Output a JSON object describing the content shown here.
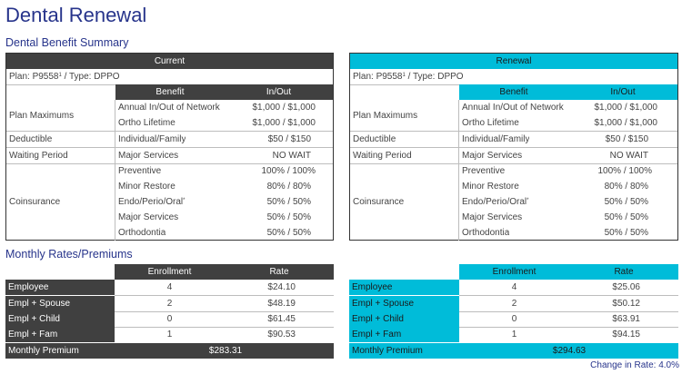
{
  "page": {
    "title": "Dental Renewal",
    "summary_heading": "Dental Benefit Summary",
    "rates_heading": "Monthly Rates/Premiums",
    "change_in_rate": "Change in Rate: 4.0%"
  },
  "colors": {
    "accent": "#00bcd9",
    "dark_header": "#404040",
    "title_blue": "#27348b"
  },
  "benefit_summary": {
    "current": {
      "header": "Current",
      "plan_prefix": "Plan: P9558",
      "plan_sup": "1",
      "plan_suffix": " / Type: DPPO",
      "col_benefit": "Benefit",
      "col_inout": "In/Out",
      "groups": {
        "plan_max": {
          "label": "Plan Maximums",
          "rows": [
            {
              "benefit": "Annual In/Out of Network",
              "value": "$1,000 / $1,000"
            },
            {
              "benefit": "Ortho Lifetime",
              "value": "$1,000 / $1,000"
            }
          ]
        },
        "deductible": {
          "label": "Deductible",
          "rows": [
            {
              "benefit": "Individual/Family",
              "value": "$50 / $150"
            }
          ]
        },
        "waiting": {
          "label": "Waiting Period",
          "rows": [
            {
              "benefit": "Major Services",
              "value": "NO WAIT"
            }
          ]
        },
        "coins": {
          "label": "Coinsurance",
          "rows": [
            {
              "benefit": "Preventive",
              "value": "100% / 100%"
            },
            {
              "benefit": "Minor Restore",
              "value": "80% / 80%"
            },
            {
              "benefit": "Endo/Perio/Oral",
              "value": "50% / 50%"
            },
            {
              "benefit": "Major Services",
              "value": "50% / 50%"
            },
            {
              "benefit": "Orthodontia",
              "value": "50% / 50%"
            }
          ]
        }
      }
    },
    "renewal": {
      "header": "Renewal",
      "plan_prefix": "Plan: P9558",
      "plan_sup": "1",
      "plan_suffix": " / Type: DPPO",
      "col_benefit": "Benefit",
      "col_inout": "In/Out",
      "groups": {
        "plan_max": {
          "label": "Plan Maximums",
          "rows": [
            {
              "benefit": "Annual In/Out of Network",
              "value": "$1,000 / $1,000"
            },
            {
              "benefit": "Ortho Lifetime",
              "value": "$1,000 / $1,000"
            }
          ]
        },
        "deductible": {
          "label": "Deductible",
          "rows": [
            {
              "benefit": "Individual/Family",
              "value": "$50 / $150"
            }
          ]
        },
        "waiting": {
          "label": "Waiting Period",
          "rows": [
            {
              "benefit": "Major Services",
              "value": "NO WAIT"
            }
          ]
        },
        "coins": {
          "label": "Coinsurance",
          "rows": [
            {
              "benefit": "Preventive",
              "value": "100% / 100%"
            },
            {
              "benefit": "Minor Restore",
              "value": "80% / 80%"
            },
            {
              "benefit": "Endo/Perio/Oral",
              "value": "50% / 50%"
            },
            {
              "benefit": "Major Services",
              "value": "50% / 50%"
            },
            {
              "benefit": "Orthodontia",
              "value": "50% / 50%"
            }
          ]
        }
      }
    }
  },
  "rates": {
    "current": {
      "col_enrollment": "Enrollment",
      "col_rate": "Rate",
      "rows": [
        {
          "tier": "Employee",
          "enrollment": "4",
          "rate": "$24.10"
        },
        {
          "tier": "Empl + Spouse",
          "enrollment": "2",
          "rate": "$48.19"
        },
        {
          "tier": "Empl + Child",
          "enrollment": "0",
          "rate": "$61.45"
        },
        {
          "tier": "Empl + Fam",
          "enrollment": "1",
          "rate": "$90.53"
        }
      ],
      "monthly_premium_label": "Monthly Premium",
      "monthly_premium": "$283.31"
    },
    "renewal": {
      "col_enrollment": "Enrollment",
      "col_rate": "Rate",
      "rows": [
        {
          "tier": "Employee",
          "enrollment": "4",
          "rate": "$25.06"
        },
        {
          "tier": "Empl + Spouse",
          "enrollment": "2",
          "rate": "$50.12"
        },
        {
          "tier": "Empl + Child",
          "enrollment": "0",
          "rate": "$63.91"
        },
        {
          "tier": "Empl + Fam",
          "enrollment": "1",
          "rate": "$94.15"
        }
      ],
      "monthly_premium_label": "Monthly Premium",
      "monthly_premium": "$294.63"
    }
  }
}
